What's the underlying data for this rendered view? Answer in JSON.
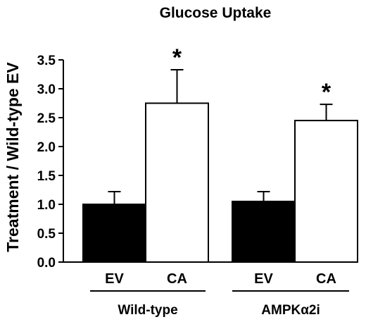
{
  "chart_data": {
    "type": "bar",
    "title": "Glucose Uptake",
    "ylabel": "Treatment / Wild-type EV",
    "xlabel": "",
    "ylim": [
      0,
      3.5
    ],
    "yticks": [
      0.0,
      0.5,
      1.0,
      1.5,
      2.0,
      2.5,
      3.0,
      3.5
    ],
    "ytick_labels": [
      "0.0",
      "0.5",
      "1.0",
      "1.5",
      "2.0",
      "2.5",
      "3.0",
      "3.5"
    ],
    "groups": [
      {
        "label": "Wild-type",
        "bars": [
          {
            "label": "EV",
            "value": 1.0,
            "error": 0.22,
            "fill": "#000000",
            "significance": ""
          },
          {
            "label": "CA",
            "value": 2.75,
            "error": 0.58,
            "fill": "#ffffff",
            "significance": "*"
          }
        ]
      },
      {
        "label": "AMPKα2i",
        "bars": [
          {
            "label": "EV",
            "value": 1.05,
            "error": 0.17,
            "fill": "#000000",
            "significance": ""
          },
          {
            "label": "CA",
            "value": 2.45,
            "error": 0.28,
            "fill": "#ffffff",
            "significance": "*"
          }
        ]
      }
    ],
    "grid": false,
    "legend": "none"
  }
}
